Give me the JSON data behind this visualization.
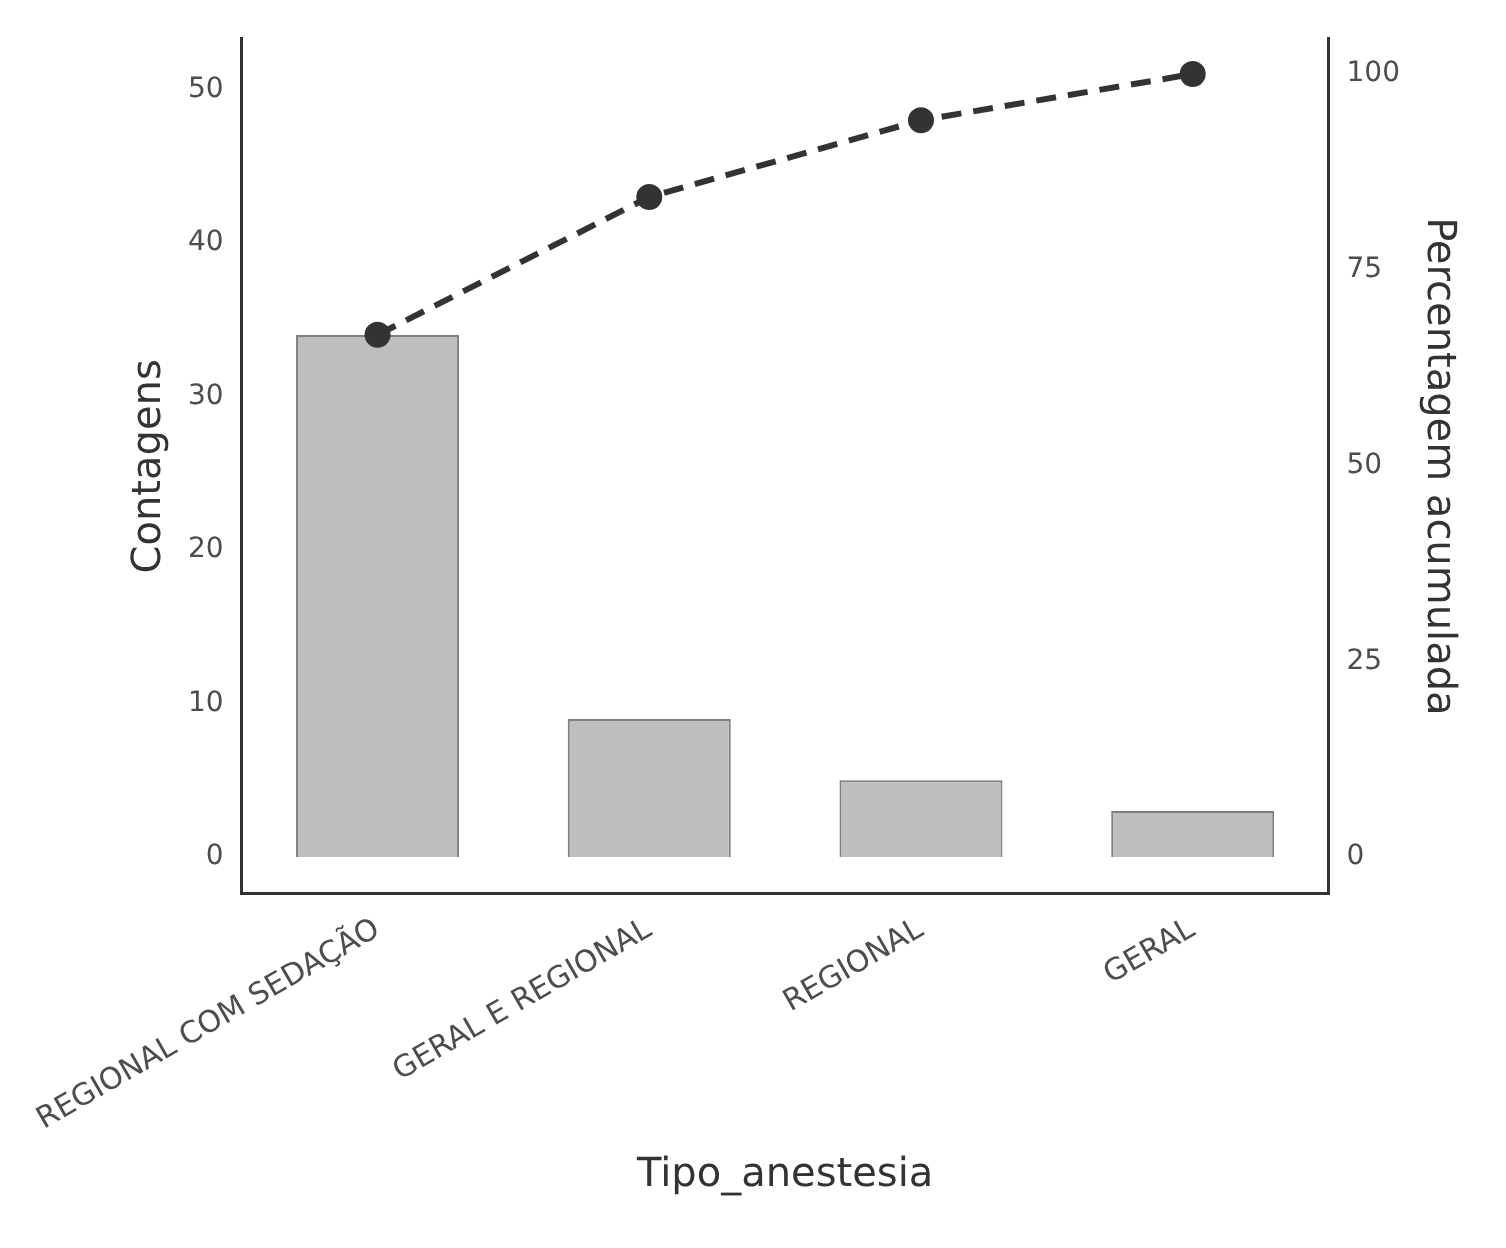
{
  "chart_data": {
    "type": "bar",
    "xlabel": "Tipo_anestesia",
    "ylabel": "Contagens",
    "y2label": "Percentagem acumulada",
    "categories": [
      "REGIONAL COM SEDAÇÃO",
      "GERAL E REGIONAL",
      "REGIONAL",
      "GERAL"
    ],
    "series": [
      {
        "color": "#bebebe",
        "values": [
          34,
          9,
          5,
          3
        ]
      },
      {
        "type": "line",
        "axis": "y2",
        "color": "#333333",
        "values": [
          66.7,
          84.3,
          94.1,
          100
        ],
        "marker": "circle",
        "line_style": "dashed"
      }
    ],
    "ylim": [
      -2.4,
      53.3
    ],
    "yticks": [
      0,
      10,
      20,
      30,
      40,
      50
    ],
    "y2lim": [
      -4.7,
      104.5
    ],
    "y2ticks": [
      0,
      25,
      50,
      75,
      100
    ],
    "grid": false,
    "legend": false
  }
}
